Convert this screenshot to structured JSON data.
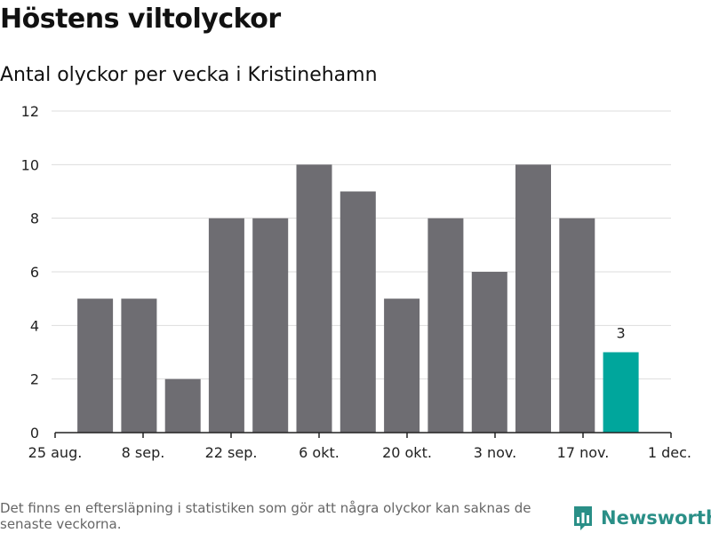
{
  "header": {
    "title": "Höstens viltolyckor",
    "subtitle": "Antal olyckor per vecka i Kristinehamn"
  },
  "footer": {
    "note": "Det finns en eftersläpning i statistiken som gör att några olyckor kan saknas de senaste veckorna.",
    "brand": "Newsworthy"
  },
  "colors": {
    "bar": "#6e6d72",
    "highlight": "#00a69c",
    "brand": "#2a8f87"
  },
  "chart_data": {
    "type": "bar",
    "title": "Höstens viltolyckor",
    "subtitle": "Antal olyckor per vecka i Kristinehamn",
    "values": [
      5,
      5,
      2,
      8,
      8,
      10,
      9,
      5,
      8,
      6,
      10,
      8,
      3
    ],
    "highlight_index": 12,
    "highlight_label": "3",
    "xtick_labels": [
      "25 aug.",
      "8 sep.",
      "22 sep.",
      "6 okt.",
      "20 okt.",
      "3 nov.",
      "17 nov.",
      "1 dec."
    ],
    "yticks": [
      0,
      2,
      4,
      6,
      8,
      10,
      12
    ],
    "ylim": [
      0,
      12
    ],
    "grid": true,
    "legend": "none"
  }
}
